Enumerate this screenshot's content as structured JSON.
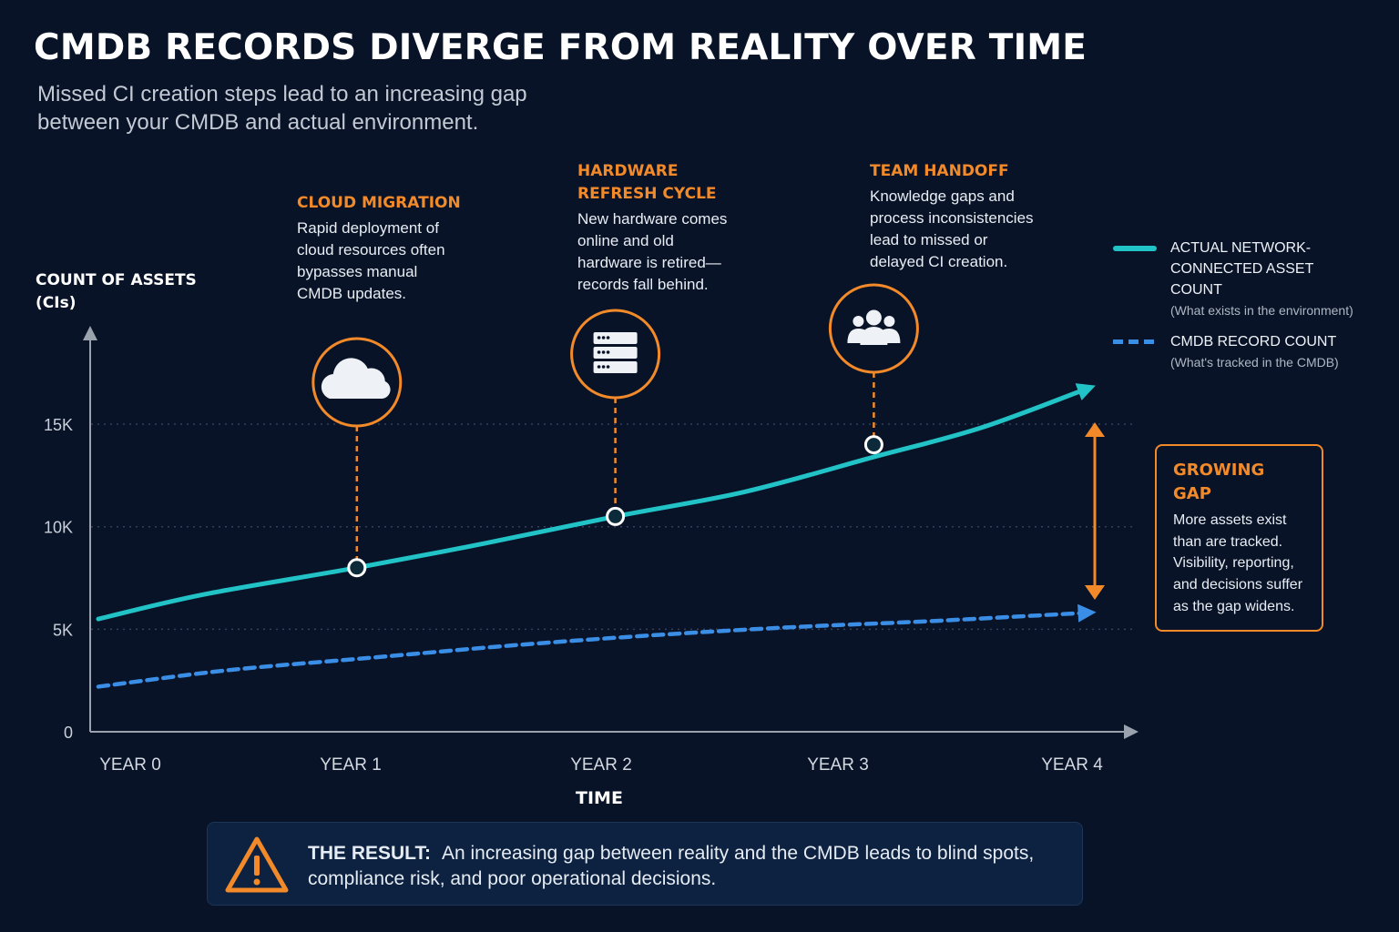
{
  "header": {
    "title": "CMDB RECORDS DIVERGE FROM REALITY OVER TIME",
    "subtitle": "Missed CI creation steps lead to an increasing gap between your CMDB and actual environment."
  },
  "axes": {
    "ylabel_line1": "COUNT OF ASSETS",
    "ylabel_line2": "(CIs)",
    "xlabel": "TIME"
  },
  "chart_data": {
    "type": "line",
    "title": "CMDB RECORDS DIVERGE FROM REALITY OVER TIME",
    "xlabel": "TIME",
    "ylabel": "COUNT OF ASSETS (CIs)",
    "x_ticks": [
      "YEAR 0",
      "YEAR 1",
      "YEAR 2",
      "YEAR 3",
      "YEAR 4"
    ],
    "y_ticks": [
      "0",
      "5K",
      "10K",
      "15K"
    ],
    "y_tick_values": [
      0,
      5000,
      10000,
      15000
    ],
    "xlim": [
      -0.15,
      4.25
    ],
    "ylim": [
      0,
      19500
    ],
    "grid": "horizontal dotted",
    "legend_position": "right",
    "series": [
      {
        "name": "ACTUAL NETWORK-CONNECTED ASSET COUNT",
        "description": "(What exists in the environment)",
        "style": "solid",
        "color": "#22c3c6",
        "x": [
          -0.15,
          0.3,
          0.95,
          1.5,
          2.05,
          2.6,
          3.15,
          3.6,
          4.05
        ],
        "y": [
          5500,
          6700,
          8000,
          9200,
          10500,
          11700,
          13400,
          14800,
          16700
        ]
      },
      {
        "name": "CMDB RECORD COUNT",
        "description": "(What's tracked in the CMDB)",
        "style": "dashed",
        "color": "#3a8ee6",
        "x": [
          -0.15,
          0.4,
          1.0,
          1.6,
          2.2,
          2.8,
          3.4,
          4.05
        ],
        "y": [
          2200,
          3000,
          3600,
          4200,
          4700,
          5100,
          5400,
          5800
        ]
      }
    ],
    "annotations": [
      {
        "title": "CLOUD MIGRATION",
        "description": "Rapid deployment of cloud resources often bypasses manual CMDB updates.",
        "icon": "cloud-icon",
        "x": 0.95,
        "y": 8000
      },
      {
        "title": "HARDWARE REFRESH CYCLE",
        "description": "New hardware comes online and old hardware is retired—records fall behind.",
        "icon": "server-icon",
        "x": 2.05,
        "y": 10500
      },
      {
        "title": "TEAM HANDOFF",
        "description": "Knowledge gaps and process inconsistencies lead to missed or delayed CI creation.",
        "icon": "team-icon",
        "x": 3.15,
        "y": 14000
      }
    ]
  },
  "annotations_text": [
    {
      "title": "CLOUD MIGRATION",
      "desc": "Rapid deployment of cloud resources often bypasses manual CMDB updates."
    },
    {
      "title": "HARDWARE REFRESH CYCLE",
      "desc": "New hardware comes online and old hardware is retired—records fall behind."
    },
    {
      "title": "TEAM HANDOFF",
      "desc": "Knowledge gaps and process inconsistencies lead to missed or delayed CI creation."
    }
  ],
  "legend": {
    "actual_label": "ACTUAL NETWORK-CONNECTED ASSET COUNT",
    "actual_sub": "(What exists in the environment)",
    "cmdb_label": "CMDB RECORD COUNT",
    "cmdb_sub": "(What's tracked in the CMDB)"
  },
  "gap_box": {
    "title": "GROWING GAP",
    "desc": "More assets exist than are tracked. Visibility, reporting, and decisions suffer as the gap widens."
  },
  "result": {
    "label": "THE RESULT:",
    "text": "An increasing gap between reality and the CMDB leads to blind spots, compliance risk, and poor operational decisions."
  },
  "colors": {
    "background": "#081328",
    "accent_orange": "#f28a2a",
    "actual_line": "#22c3c6",
    "cmdb_line": "#3a8ee6"
  }
}
